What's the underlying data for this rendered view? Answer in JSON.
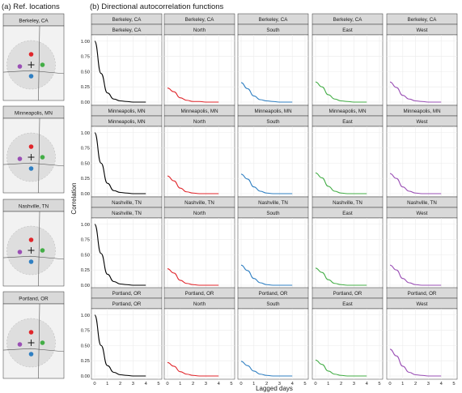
{
  "panel_a_title": "(a) Ref. locations",
  "panel_b_title": "(b) Directional autocorrelation functions",
  "ylabel": "Correlation",
  "xlabel": "Lagged days",
  "colors": {
    "Berkeley, CA": "#000000",
    "North": "#e0262b",
    "South": "#2f7fc2",
    "East": "#43ad46",
    "West": "#9a4fb5",
    "strip": "#d9d9d9",
    "panel_bg": "#ffffff",
    "grid": "#ebebeb"
  },
  "locations": [
    "Berkeley, CA",
    "Minneapolis, MN",
    "Nashville, TN",
    "Portland, OR"
  ],
  "directions": [
    "North",
    "South",
    "East",
    "West"
  ],
  "map_markers": [
    {
      "name": "center-cross",
      "symbol": "+"
    },
    {
      "name": "north-dot",
      "color": "#e0262b"
    },
    {
      "name": "south-dot",
      "color": "#2f7fc2"
    },
    {
      "name": "east-dot",
      "color": "#43ad46"
    },
    {
      "name": "west-dot",
      "color": "#9a4fb5"
    }
  ],
  "chart_data": {
    "type": "line",
    "x_ticks": [
      0,
      1,
      2,
      3,
      4,
      5
    ],
    "y_ticks": [
      "0.00",
      "0.25",
      "0.50",
      "0.75",
      "1.00"
    ],
    "xlim": [
      0,
      5
    ],
    "ylim": [
      0,
      1.05
    ],
    "grid": true,
    "x": [
      0,
      0.5,
      1,
      1.5,
      2,
      2.5,
      3,
      3.5,
      4
    ],
    "rows": [
      {
        "location": "Berkeley, CA",
        "series": [
          {
            "name": "Berkeley, CA",
            "values": [
              1.0,
              0.47,
              0.15,
              0.05,
              0.02,
              0.01,
              0.0,
              0.0,
              0.0
            ]
          },
          {
            "name": "North",
            "values": [
              0.23,
              0.17,
              0.07,
              0.03,
              0.01,
              0.01,
              0.0,
              0.0,
              0.0
            ]
          },
          {
            "name": "South",
            "values": [
              0.32,
              0.22,
              0.1,
              0.04,
              0.02,
              0.01,
              0.0,
              0.0,
              0.0
            ]
          },
          {
            "name": "East",
            "values": [
              0.33,
              0.25,
              0.12,
              0.05,
              0.02,
              0.01,
              0.0,
              0.0,
              0.0
            ]
          },
          {
            "name": "West",
            "values": [
              0.33,
              0.24,
              0.11,
              0.05,
              0.02,
              0.01,
              0.0,
              0.0,
              0.0
            ]
          }
        ]
      },
      {
        "location": "Minneapolis, MN",
        "series": [
          {
            "name": "Minneapolis, MN",
            "values": [
              1.0,
              0.5,
              0.17,
              0.05,
              0.02,
              0.01,
              0.0,
              0.0,
              0.0
            ]
          },
          {
            "name": "North",
            "values": [
              0.29,
              0.21,
              0.09,
              0.03,
              0.01,
              0.0,
              0.0,
              0.0,
              0.0
            ]
          },
          {
            "name": "South",
            "values": [
              0.32,
              0.24,
              0.11,
              0.04,
              0.01,
              0.0,
              0.0,
              0.0,
              0.0
            ]
          },
          {
            "name": "East",
            "values": [
              0.34,
              0.26,
              0.12,
              0.04,
              0.01,
              0.0,
              0.0,
              0.0,
              0.0
            ]
          },
          {
            "name": "West",
            "values": [
              0.33,
              0.25,
              0.11,
              0.04,
              0.01,
              0.0,
              0.0,
              0.0,
              0.0
            ]
          }
        ]
      },
      {
        "location": "Nashville, TN",
        "series": [
          {
            "name": "Nashville, TN",
            "values": [
              1.0,
              0.52,
              0.18,
              0.06,
              0.02,
              0.01,
              0.0,
              0.0,
              0.0
            ]
          },
          {
            "name": "North",
            "values": [
              0.27,
              0.2,
              0.08,
              0.03,
              0.01,
              0.0,
              0.0,
              0.0,
              0.0
            ]
          },
          {
            "name": "South",
            "values": [
              0.33,
              0.24,
              0.11,
              0.04,
              0.01,
              0.0,
              0.0,
              0.0,
              0.0
            ]
          },
          {
            "name": "East",
            "values": [
              0.28,
              0.21,
              0.09,
              0.03,
              0.01,
              0.0,
              0.0,
              0.0,
              0.0
            ]
          },
          {
            "name": "West",
            "values": [
              0.33,
              0.25,
              0.11,
              0.04,
              0.01,
              0.0,
              0.0,
              0.0,
              0.0
            ]
          }
        ]
      },
      {
        "location": "Portland, OR",
        "series": [
          {
            "name": "Portland, OR",
            "values": [
              1.0,
              0.5,
              0.17,
              0.06,
              0.02,
              0.01,
              0.0,
              0.0,
              0.0
            ]
          },
          {
            "name": "North",
            "values": [
              0.22,
              0.16,
              0.07,
              0.03,
              0.01,
              0.0,
              0.0,
              0.0,
              0.0
            ]
          },
          {
            "name": "South",
            "values": [
              0.24,
              0.17,
              0.08,
              0.03,
              0.01,
              0.0,
              0.0,
              0.0,
              0.0
            ]
          },
          {
            "name": "East",
            "values": [
              0.26,
              0.19,
              0.08,
              0.03,
              0.01,
              0.0,
              0.0,
              0.0,
              0.0
            ]
          },
          {
            "name": "West",
            "values": [
              0.44,
              0.33,
              0.16,
              0.06,
              0.02,
              0.01,
              0.0,
              0.0,
              0.0
            ]
          }
        ]
      }
    ]
  }
}
